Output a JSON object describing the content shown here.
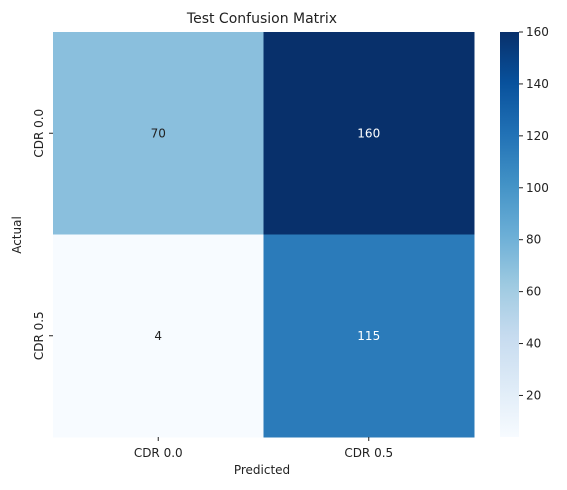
{
  "chart_data": {
    "type": "heatmap",
    "title": "Test Confusion Matrix",
    "xlabel": "Predicted",
    "ylabel": "Actual",
    "x_categories": [
      "CDR 0.0",
      "CDR 0.5"
    ],
    "y_categories": [
      "CDR 0.0",
      "CDR 0.5"
    ],
    "values": [
      [
        70,
        160
      ],
      [
        4,
        115
      ]
    ],
    "colormap": "Blues",
    "colorbar": {
      "min": 4,
      "max": 160,
      "ticks": [
        20,
        40,
        60,
        80,
        100,
        120,
        140,
        160
      ]
    }
  }
}
